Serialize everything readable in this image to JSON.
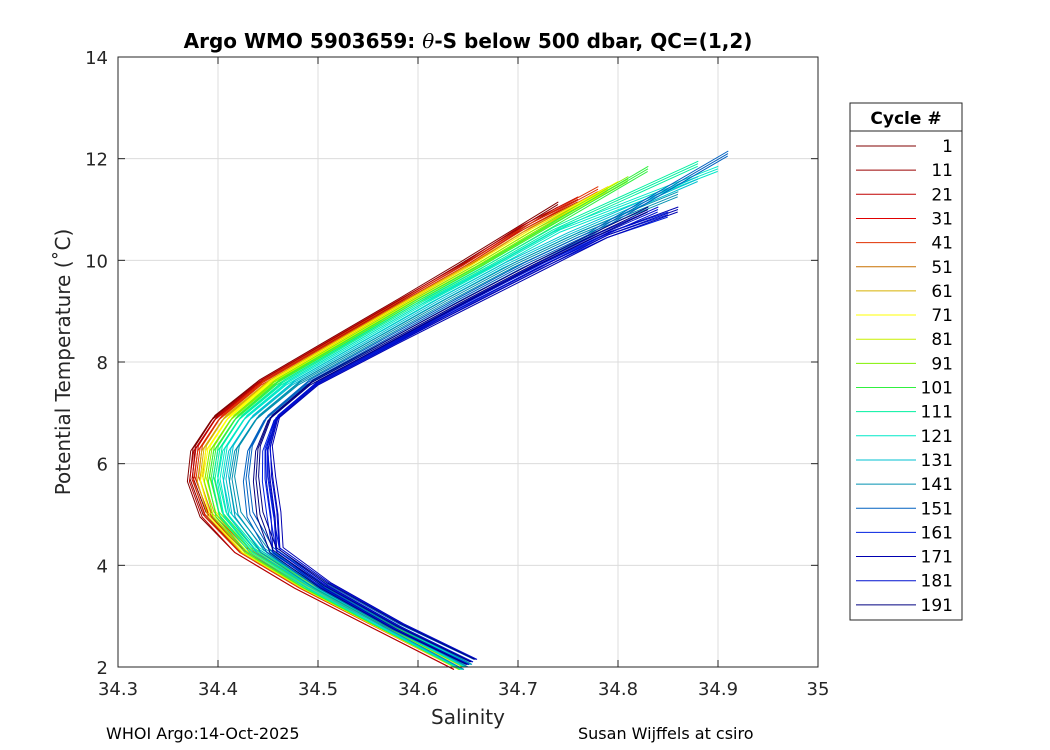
{
  "chart_data": {
    "type": "line",
    "title_prefix": "Argo WMO 5903659: ",
    "title_theta": "θ",
    "title_suffix": "-S below 500 dbar,  QC=(1,2)",
    "xlabel": "Salinity",
    "ylabel": "Potential Temperature (˚C)",
    "xlim": [
      34.3,
      35.0
    ],
    "ylim": [
      2,
      14
    ],
    "xticks": [
      34.3,
      34.4,
      34.5,
      34.6,
      34.7,
      34.8,
      34.9,
      35
    ],
    "xtick_labels": [
      "34.3",
      "34.4",
      "34.5",
      "34.6",
      "34.7",
      "34.8",
      "34.9",
      "35"
    ],
    "yticks": [
      2,
      4,
      6,
      8,
      10,
      12,
      14
    ],
    "ytick_labels": [
      "2",
      "4",
      "6",
      "8",
      "10",
      "12",
      "14"
    ],
    "grid": true,
    "legend": {
      "title": "Cycle #",
      "placement": "outside-right",
      "entries": [
        {
          "label": "1",
          "color": "#800000"
        },
        {
          "label": "11",
          "color": "#9a0000"
        },
        {
          "label": "21",
          "color": "#c00000"
        },
        {
          "label": "31",
          "color": "#e00000"
        },
        {
          "label": "41",
          "color": "#e03000"
        },
        {
          "label": "51",
          "color": "#c87000"
        },
        {
          "label": "61",
          "color": "#d8b000"
        },
        {
          "label": "71",
          "color": "#ffff00"
        },
        {
          "label": "81",
          "color": "#c8f000"
        },
        {
          "label": "91",
          "color": "#80f000"
        },
        {
          "label": "101",
          "color": "#30f040"
        },
        {
          "label": "111",
          "color": "#00f0a0"
        },
        {
          "label": "121",
          "color": "#00e8c8"
        },
        {
          "label": "131",
          "color": "#00c0d0"
        },
        {
          "label": "141",
          "color": "#0090b0"
        },
        {
          "label": "151",
          "color": "#0060c0"
        },
        {
          "label": "161",
          "color": "#0020e0"
        },
        {
          "label": "171",
          "color": "#0000b0"
        },
        {
          "label": "181",
          "color": "#0010d0"
        },
        {
          "label": "191",
          "color": "#000080"
        }
      ]
    },
    "series": [
      {
        "name": "1",
        "color": "#800000",
        "salinity": [
          34.64,
          34.56,
          34.48,
          34.42,
          34.385,
          34.372,
          34.375,
          34.395,
          34.44,
          34.51,
          34.58,
          34.64,
          34.69,
          34.74
        ],
        "theta": [
          2.0,
          2.8,
          3.6,
          4.3,
          5.0,
          5.7,
          6.3,
          6.9,
          7.6,
          8.4,
          9.2,
          9.9,
          10.5,
          11.1
        ]
      },
      {
        "name": "21",
        "color": "#c00000",
        "salinity": [
          34.64,
          34.56,
          34.48,
          34.42,
          34.387,
          34.374,
          34.378,
          34.398,
          34.442,
          34.512,
          34.582,
          34.645,
          34.7,
          34.76
        ],
        "theta": [
          2.0,
          2.8,
          3.6,
          4.3,
          5.0,
          5.7,
          6.3,
          6.9,
          7.6,
          8.4,
          9.2,
          9.9,
          10.6,
          11.2
        ]
      },
      {
        "name": "41",
        "color": "#e03000",
        "salinity": [
          34.645,
          34.565,
          34.485,
          34.425,
          34.39,
          34.378,
          34.382,
          34.402,
          34.445,
          34.515,
          34.585,
          34.648,
          34.705,
          34.78
        ],
        "theta": [
          2.0,
          2.8,
          3.6,
          4.3,
          5.0,
          5.7,
          6.3,
          6.9,
          7.6,
          8.4,
          9.2,
          9.9,
          10.6,
          11.4
        ]
      },
      {
        "name": "61",
        "color": "#d8b000",
        "salinity": [
          34.645,
          34.566,
          34.487,
          34.427,
          34.393,
          34.382,
          34.386,
          34.406,
          34.45,
          34.52,
          34.59,
          34.653,
          34.712,
          34.79
        ],
        "theta": [
          2.0,
          2.8,
          3.6,
          4.3,
          5.0,
          5.7,
          6.3,
          6.9,
          7.6,
          8.4,
          9.2,
          9.9,
          10.6,
          11.4
        ]
      },
      {
        "name": "71",
        "color": "#ffff00",
        "salinity": [
          34.645,
          34.566,
          34.488,
          34.428,
          34.395,
          34.385,
          34.39,
          34.41,
          34.452,
          34.522,
          34.592,
          34.656,
          34.716,
          34.8
        ],
        "theta": [
          2.0,
          2.8,
          3.6,
          4.3,
          5.0,
          5.7,
          6.3,
          6.9,
          7.6,
          8.4,
          9.2,
          9.9,
          10.6,
          11.5
        ]
      },
      {
        "name": "91",
        "color": "#80f000",
        "salinity": [
          34.646,
          34.567,
          34.489,
          34.43,
          34.398,
          34.389,
          34.394,
          34.414,
          34.456,
          34.526,
          34.596,
          34.66,
          34.72,
          34.81
        ],
        "theta": [
          2.0,
          2.8,
          3.6,
          4.3,
          5.0,
          5.7,
          6.3,
          6.9,
          7.6,
          8.4,
          9.2,
          9.9,
          10.6,
          11.6
        ]
      },
      {
        "name": "101",
        "color": "#30f040",
        "salinity": [
          34.646,
          34.568,
          34.49,
          34.432,
          34.401,
          34.393,
          34.398,
          34.418,
          34.46,
          34.53,
          34.6,
          34.665,
          34.726,
          34.83
        ],
        "theta": [
          2.0,
          2.8,
          3.6,
          4.3,
          5.0,
          5.7,
          6.3,
          6.9,
          7.6,
          8.4,
          9.2,
          9.9,
          10.6,
          11.8
        ]
      },
      {
        "name": "111",
        "color": "#00f0a0",
        "salinity": [
          34.647,
          34.569,
          34.492,
          34.435,
          34.405,
          34.397,
          34.402,
          34.422,
          34.465,
          34.535,
          34.606,
          34.672,
          34.735,
          34.88
        ],
        "theta": [
          2.0,
          2.8,
          3.6,
          4.3,
          5.0,
          5.7,
          6.3,
          6.9,
          7.6,
          8.4,
          9.2,
          9.9,
          10.6,
          11.9
        ]
      },
      {
        "name": "121",
        "color": "#00e8c8",
        "salinity": [
          34.648,
          34.57,
          34.494,
          34.438,
          34.409,
          34.402,
          34.407,
          34.427,
          34.47,
          34.541,
          34.612,
          34.678,
          34.742,
          34.9
        ],
        "theta": [
          2.0,
          2.8,
          3.6,
          4.3,
          5.0,
          5.7,
          6.3,
          6.9,
          7.6,
          8.4,
          9.2,
          9.9,
          10.6,
          11.8
        ]
      },
      {
        "name": "131",
        "color": "#00c0d0",
        "salinity": [
          34.649,
          34.572,
          34.497,
          34.442,
          34.414,
          34.408,
          34.413,
          34.433,
          34.476,
          34.548,
          34.62,
          34.686,
          34.75,
          34.88
        ],
        "theta": [
          2.0,
          2.8,
          3.6,
          4.3,
          5.0,
          5.7,
          6.3,
          6.9,
          7.6,
          8.4,
          9.2,
          9.9,
          10.5,
          11.6
        ]
      },
      {
        "name": "141",
        "color": "#0090b0",
        "salinity": [
          34.65,
          34.574,
          34.5,
          34.446,
          34.42,
          34.414,
          34.419,
          34.439,
          34.482,
          34.555,
          34.628,
          34.695,
          34.76,
          34.86
        ],
        "theta": [
          2.0,
          2.8,
          3.6,
          4.3,
          5.0,
          5.7,
          6.3,
          6.9,
          7.6,
          8.4,
          9.2,
          9.9,
          10.5,
          11.3
        ]
      },
      {
        "name": "151",
        "color": "#0060c0",
        "salinity": [
          34.652,
          34.577,
          34.504,
          34.452,
          34.432,
          34.428,
          34.432,
          34.448,
          34.49,
          34.564,
          34.638,
          34.705,
          34.77,
          34.91
        ],
        "theta": [
          2.1,
          2.8,
          3.6,
          4.3,
          5.0,
          5.7,
          6.3,
          6.9,
          7.6,
          8.4,
          9.2,
          9.9,
          10.5,
          12.1
        ]
      },
      {
        "name": "161",
        "color": "#0020e0",
        "salinity": [
          34.654,
          34.58,
          34.508,
          34.458,
          34.452,
          34.447,
          34.447,
          34.458,
          34.5,
          34.578,
          34.655,
          34.725,
          34.79,
          34.85
        ],
        "theta": [
          2.1,
          2.8,
          3.6,
          4.3,
          5.0,
          5.7,
          6.3,
          6.9,
          7.6,
          8.4,
          9.2,
          9.9,
          10.5,
          10.9
        ]
      },
      {
        "name": "171",
        "color": "#0000b0",
        "salinity": [
          34.655,
          34.582,
          34.51,
          34.462,
          34.46,
          34.455,
          34.452,
          34.46,
          34.502,
          34.58,
          34.66,
          34.73,
          34.79,
          34.86
        ],
        "theta": [
          2.1,
          2.8,
          3.6,
          4.3,
          5.0,
          5.7,
          6.3,
          6.9,
          7.6,
          8.4,
          9.2,
          9.9,
          10.5,
          11.0
        ]
      },
      {
        "name": "181",
        "color": "#0010d0",
        "salinity": [
          34.655,
          34.581,
          34.508,
          34.458,
          34.456,
          34.451,
          34.45,
          34.458,
          34.5,
          34.576,
          34.652,
          34.72,
          34.782,
          34.84
        ],
        "theta": [
          2.1,
          2.8,
          3.6,
          4.3,
          5.0,
          5.7,
          6.3,
          6.9,
          7.6,
          8.4,
          9.2,
          9.9,
          10.5,
          11.0
        ]
      },
      {
        "name": "191",
        "color": "#000080",
        "salinity": [
          34.653,
          34.579,
          34.506,
          34.455,
          34.442,
          34.438,
          34.44,
          34.452,
          34.494,
          34.57,
          34.646,
          34.714,
          34.776,
          34.83
        ],
        "theta": [
          2.1,
          2.8,
          3.6,
          4.3,
          5.0,
          5.7,
          6.3,
          6.9,
          7.6,
          8.4,
          9.2,
          9.9,
          10.5,
          11.0
        ]
      }
    ]
  },
  "footer": {
    "left": "WHOI Argo:14-Oct-2025",
    "right": "Susan Wijffels at csiro"
  }
}
